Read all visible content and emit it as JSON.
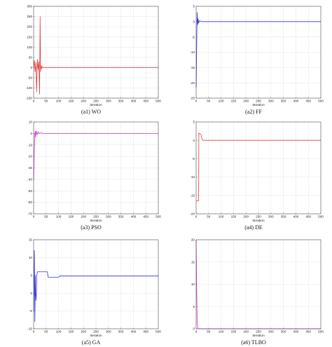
{
  "chart_data": [
    {
      "type": "line",
      "caption": "(a1) WO",
      "xlabel": "Iteration",
      "ylabel": "",
      "color": "#e03c3c",
      "xlim": [
        0,
        500
      ],
      "ylim": [
        -150,
        300
      ],
      "xticks": [
        0,
        50,
        100,
        150,
        200,
        250,
        300,
        350,
        400,
        450,
        500
      ],
      "yticks": [
        -150,
        -100,
        -50,
        0,
        50,
        100,
        150,
        200,
        250,
        300
      ],
      "series": [
        {
          "x": [
            0,
            3,
            6,
            9,
            12,
            15,
            18,
            21,
            24,
            26,
            28,
            30,
            32,
            35,
            40,
            50,
            500
          ],
          "y": [
            0,
            35,
            -20,
            25,
            -120,
            40,
            -10,
            30,
            -130,
            250,
            -20,
            10,
            -5,
            5,
            0,
            0,
            0
          ]
        }
      ],
      "grid": true
    },
    {
      "type": "line",
      "caption": "(a2) FF",
      "xlabel": "Iteration",
      "ylabel": "",
      "color": "#3333dd",
      "xlim": [
        0,
        500
      ],
      "ylim": [
        -25,
        5
      ],
      "xticks": [
        0,
        50,
        100,
        150,
        200,
        250,
        300,
        350,
        400,
        450,
        500
      ],
      "yticks": [
        -25,
        -20,
        -15,
        -10,
        -5,
        0,
        5
      ],
      "series": [
        {
          "x": [
            0,
            2,
            4,
            6,
            8,
            10,
            14,
            20,
            500
          ],
          "y": [
            -21.5,
            -10,
            3,
            -1,
            1,
            -0.5,
            0.3,
            0,
            0
          ]
        }
      ],
      "grid": true
    },
    {
      "type": "line",
      "caption": "(a3) PSO",
      "xlabel": "Iteration",
      "ylabel": "",
      "color": "#d42ad4",
      "xlim": [
        0,
        500
      ],
      "ylim": [
        -70,
        10
      ],
      "xticks": [
        0,
        50,
        100,
        150,
        200,
        250,
        300,
        350,
        400,
        450,
        500
      ],
      "yticks": [
        -70,
        -60,
        -50,
        -40,
        -30,
        -20,
        -10,
        0,
        10
      ],
      "series": [
        {
          "x": [
            0,
            2,
            4,
            6,
            8,
            10,
            14,
            18,
            22,
            28,
            40,
            500
          ],
          "y": [
            -40,
            -20,
            -5,
            2,
            -3,
            2,
            -1,
            1.5,
            0,
            0.5,
            0,
            0
          ]
        }
      ],
      "grid": true
    },
    {
      "type": "line",
      "caption": "(a4) DE",
      "xlabel": "Iteration",
      "ylabel": "",
      "color": "#e03c3c",
      "xlim": [
        0,
        500
      ],
      "ylim": [
        -20,
        5
      ],
      "xticks": [
        0,
        50,
        100,
        150,
        200,
        250,
        300,
        350,
        400,
        450,
        500
      ],
      "yticks": [
        -20,
        -15,
        -10,
        -5,
        0,
        5
      ],
      "series": [
        {
          "x": [
            0,
            10,
            11,
            20,
            23,
            28,
            500
          ],
          "y": [
            -16.5,
            -16.5,
            2,
            1.5,
            0.5,
            0,
            0
          ]
        }
      ],
      "grid": true
    },
    {
      "type": "line",
      "caption": "(a5) GA",
      "xlabel": "Iteration",
      "ylabel": "",
      "color": "#3333dd",
      "xlim": [
        0,
        500
      ],
      "ylim": [
        -10,
        15
      ],
      "xticks": [
        0,
        50,
        100,
        150,
        200,
        250,
        300,
        350,
        400,
        450,
        500
      ],
      "yticks": [
        -10,
        -5,
        0,
        5,
        10,
        15
      ],
      "series": [
        {
          "x": [
            0,
            3,
            5,
            7,
            8,
            10,
            13,
            15,
            55,
            58,
            100,
            105,
            500
          ],
          "y": [
            -5,
            12,
            -8,
            5,
            0,
            -2,
            5,
            6,
            6,
            4.5,
            4.5,
            4.8,
            4.8
          ]
        }
      ],
      "grid": true
    },
    {
      "type": "line",
      "caption": "(a6) TLBO",
      "xlabel": "Iteration",
      "ylabel": "",
      "color": "#d42ad4",
      "xlim": [
        0,
        500
      ],
      "ylim": [
        0,
        20
      ],
      "xticks": [
        0,
        50,
        100,
        150,
        200,
        250,
        300,
        350,
        400,
        450,
        500
      ],
      "yticks": [
        0,
        5,
        10,
        15,
        20
      ],
      "series": [
        {
          "x": [
            0,
            2,
            4,
            6,
            8,
            10,
            500
          ],
          "y": [
            20,
            10,
            2,
            0.5,
            0.1,
            0,
            0
          ]
        }
      ],
      "grid": true
    }
  ]
}
